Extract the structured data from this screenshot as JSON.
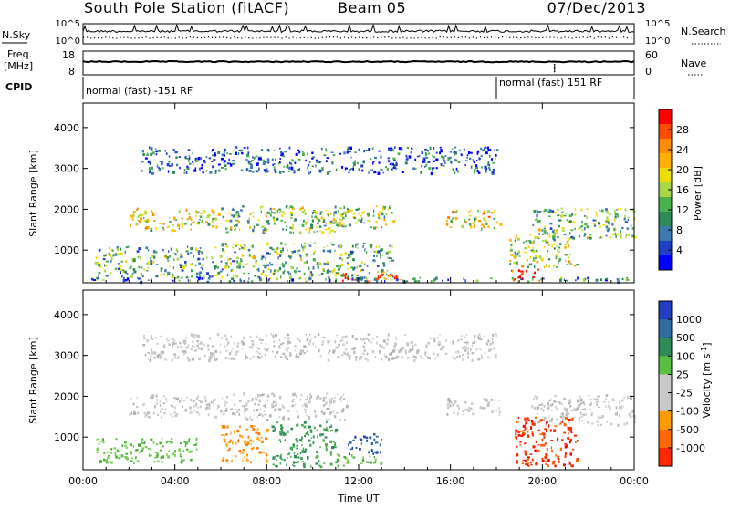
{
  "header": {
    "station_title": "South Pole Station (fitACF)",
    "beam": "Beam 05",
    "date": "07/Dec/2013"
  },
  "strips": {
    "nsky_label": "N.Sky",
    "nsearch_label": "N.Search",
    "nsky_ticks": [
      "10^5",
      "10^0"
    ],
    "nsearch_ticks": [
      "10^5",
      "10^0"
    ],
    "freq_label_1": "Freq.",
    "freq_label_2": "[MHz]",
    "freq_ticks": [
      "18",
      "8"
    ],
    "nave_label": "Nave",
    "nave_ticks": [
      "60",
      "0"
    ],
    "cpid_label": "CPID",
    "cpid_segments": [
      {
        "text": "normal (fast) -151 RF",
        "start_hour": 0
      },
      {
        "text": "normal (fast) 151 RF",
        "start_hour": 18
      }
    ]
  },
  "chart_data": [
    {
      "type": "heatmap",
      "quantity": "power",
      "xlabel": "",
      "ylabel": "Slant Range [km]",
      "xlim_hours": [
        0,
        24
      ],
      "ylim_km": [
        200,
        4600
      ],
      "y_ticks": [
        "4000",
        "3000",
        "2000",
        "1000"
      ],
      "y_tick_values": [
        4000,
        3000,
        2000,
        1000
      ],
      "colorbar": {
        "label": "Power [dB]",
        "ticks": [
          "28",
          "24",
          "20",
          "16",
          "12",
          "8",
          "4"
        ],
        "colors": [
          "#ff0000",
          "#ff4d00",
          "#ff8c00",
          "#ffb000",
          "#eedd00",
          "#a8d848",
          "#48b04c",
          "#2e8b57",
          "#3c7ab0",
          "#2040c8",
          "#0000ff"
        ]
      },
      "echo_bands": [
        {
          "t0": 2.0,
          "t1": 6.0,
          "r0": 1500,
          "r1": 2050,
          "level": 0.55
        },
        {
          "t0": 6.0,
          "t1": 11.5,
          "r0": 1450,
          "r1": 2100,
          "level": 0.45
        },
        {
          "t0": 10.0,
          "t1": 13.5,
          "r0": 1550,
          "r1": 2100,
          "level": 0.45
        },
        {
          "t0": 15.8,
          "t1": 18.2,
          "r0": 1550,
          "r1": 2000,
          "level": 0.6
        },
        {
          "t0": 19.5,
          "t1": 24.0,
          "r0": 1300,
          "r1": 2050,
          "level": 0.4
        },
        {
          "t0": 0.5,
          "t1": 6.0,
          "r0": 350,
          "r1": 1100,
          "level": 0.35
        },
        {
          "t0": 6.0,
          "t1": 13.5,
          "r0": 300,
          "r1": 1200,
          "level": 0.4
        },
        {
          "t0": 11.0,
          "t1": 13.8,
          "r0": 250,
          "r1": 450,
          "level": 0.9
        },
        {
          "t0": 18.6,
          "t1": 20.0,
          "r0": 250,
          "r1": 550,
          "level": 0.95
        },
        {
          "t0": 18.5,
          "t1": 21.5,
          "r0": 600,
          "r1": 1450,
          "level": 0.5
        },
        {
          "t0": 2.5,
          "t1": 18.0,
          "r0": 2900,
          "r1": 3550,
          "level": 0.15
        },
        {
          "t0": 0.0,
          "t1": 24.0,
          "r0": 250,
          "r1": 350,
          "level": 0.25
        }
      ]
    },
    {
      "type": "heatmap",
      "quantity": "velocity",
      "xlabel": "Time UT",
      "ylabel": "Slant Range [km]",
      "xlim_hours": [
        0,
        24
      ],
      "ylim_km": [
        200,
        4600
      ],
      "y_ticks": [
        "4000",
        "3000",
        "2000",
        "1000"
      ],
      "y_tick_values": [
        4000,
        3000,
        2000,
        1000
      ],
      "x_ticks": [
        "00:00",
        "04:00",
        "08:00",
        "12:00",
        "16:00",
        "20:00",
        "00:00"
      ],
      "x_tick_hours": [
        0,
        4,
        8,
        12,
        16,
        20,
        24
      ],
      "colorbar": {
        "label": "Velocity [m s^-1]",
        "ticks": [
          "1000",
          "500",
          "100",
          "25",
          "-25",
          "-100",
          "-500",
          "-1000"
        ],
        "colors": [
          "#2040c0",
          "#2e6e9e",
          "#2e8b57",
          "#58c040",
          "#c8c8c8",
          "#c8c8c8",
          "#ff9a00",
          "#ff6a00",
          "#ff2a00"
        ]
      },
      "echo_bands": [
        {
          "t0": 2.0,
          "t1": 6.0,
          "r0": 1500,
          "r1": 2050,
          "kind": "gray"
        },
        {
          "t0": 6.0,
          "t1": 11.5,
          "r0": 1450,
          "r1": 2100,
          "kind": "gray"
        },
        {
          "t0": 15.8,
          "t1": 18.2,
          "r0": 1550,
          "r1": 2000,
          "kind": "gray"
        },
        {
          "t0": 19.5,
          "t1": 24.0,
          "r0": 1300,
          "r1": 2050,
          "kind": "gray"
        },
        {
          "t0": 6.0,
          "t1": 8.0,
          "r0": 400,
          "r1": 1300,
          "kind": "orange"
        },
        {
          "t0": 8.2,
          "t1": 11.0,
          "r0": 300,
          "r1": 1400,
          "kind": "darkgreen"
        },
        {
          "t0": 11.0,
          "t1": 13.0,
          "r0": 250,
          "r1": 600,
          "kind": "green"
        },
        {
          "t0": 11.5,
          "t1": 13.0,
          "r0": 600,
          "r1": 1100,
          "kind": "blue"
        },
        {
          "t0": 18.8,
          "t1": 21.5,
          "r0": 300,
          "r1": 1500,
          "kind": "red"
        },
        {
          "t0": 0.5,
          "t1": 5.0,
          "r0": 400,
          "r1": 1000,
          "kind": "green"
        },
        {
          "t0": 2.5,
          "t1": 18.0,
          "r0": 2900,
          "r1": 3550,
          "kind": "gray"
        }
      ]
    }
  ]
}
